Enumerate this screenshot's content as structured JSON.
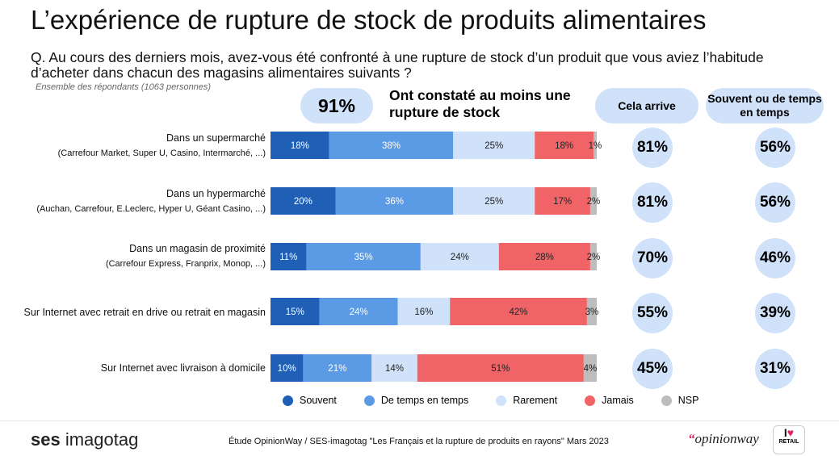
{
  "title": "L’expérience de rupture de stock de produits alimentaires",
  "question": "Q. Au cours des derniers mois, avez-vous été confronté à une rupture de stock d’un produit que vous aviez l’habitude d’acheter dans chacun des magasins alimentaires suivants ?",
  "base_note": "Ensemble des répondants (1063 personnes)",
  "headline_value": "91%",
  "headline_text": "Ont constaté au moins une rupture de stock",
  "col1_header": "Cela arrive",
  "col2_header": "Souvent ou de temps en temps",
  "chart_data": {
    "type": "bar",
    "orientation": "horizontal",
    "stacked": true,
    "value_unit": "%",
    "categories": [
      "Dans un supermarché (Carrefour Market, Super U, Casino, Intermarché, ...)",
      "Dans un hypermarché (Auchan, Carrefour, E.Leclerc, Hyper U, Géant Casino, ...)",
      "Dans un magasin de proximité (Carrefour Express, Franprix, Monop, ...)",
      "Sur Internet avec retrait en drive ou retrait en magasin",
      "Sur Internet avec livraison à domicile"
    ],
    "series": [
      {
        "name": "Souvent",
        "color": "#1f5fb5",
        "text_color": "#ffffff",
        "values": [
          18,
          20,
          11,
          15,
          10
        ]
      },
      {
        "name": "De temps en temps",
        "color": "#5b9be6",
        "text_color": "#ffffff",
        "values": [
          38,
          36,
          35,
          24,
          21
        ]
      },
      {
        "name": "Rarement",
        "color": "#cfe2fa",
        "text_color": "#222222",
        "values": [
          25,
          25,
          24,
          16,
          14
        ]
      },
      {
        "name": "Jamais",
        "color": "#f06366",
        "text_color": "#222222",
        "values": [
          18,
          17,
          28,
          42,
          51
        ]
      },
      {
        "name": "NSP",
        "color": "#bdbdbd",
        "text_color": "#222222",
        "values": [
          1,
          2,
          2,
          3,
          4
        ]
      }
    ],
    "cela_arrive": [
      81,
      81,
      70,
      55,
      45
    ],
    "souvent_ou_de_temps_en_temps": [
      56,
      56,
      46,
      39,
      31
    ],
    "legend_position": "bottom"
  },
  "rows": [
    {
      "line1": "Dans un supermarché",
      "line2": "(Carrefour Market, Super U, Casino, Intermarché, ...)",
      "col1": "81%",
      "col2": "56%"
    },
    {
      "line1": "Dans un hypermarché",
      "line2": "(Auchan, Carrefour, E.Leclerc, Hyper U, Géant Casino, ...)",
      "col1": "81%",
      "col2": "56%"
    },
    {
      "line1": "Dans un magasin de proximité",
      "line2": "(Carrefour Express, Franprix, Monop, ...)",
      "col1": "70%",
      "col2": "46%"
    },
    {
      "line1": "Sur Internet avec retrait en drive ou retrait en magasin",
      "line2": "",
      "col1": "55%",
      "col2": "39%"
    },
    {
      "line1": "Sur Internet avec livraison à domicile",
      "line2": "",
      "col1": "45%",
      "col2": "31%"
    }
  ],
  "legend": [
    {
      "label": "Souvent",
      "color": "#1f5fb5"
    },
    {
      "label": "De temps en temps",
      "color": "#5b9be6"
    },
    {
      "label": "Rarement",
      "color": "#cfe2fa"
    },
    {
      "label": "Jamais",
      "color": "#f06366"
    },
    {
      "label": "NSP",
      "color": "#bdbdbd"
    }
  ],
  "footer": {
    "brand_left_bold": "ses",
    "brand_left_rest": " imagotag",
    "source": "Étude OpinionWay / SES-imagotag \"Les Français et la rupture de produits en rayons\" Mars 2023",
    "brand_right_quote": "“",
    "brand_right": "opinionway",
    "badge_heart": "♥",
    "badge_i": "I",
    "badge_text": "RETAIL"
  }
}
